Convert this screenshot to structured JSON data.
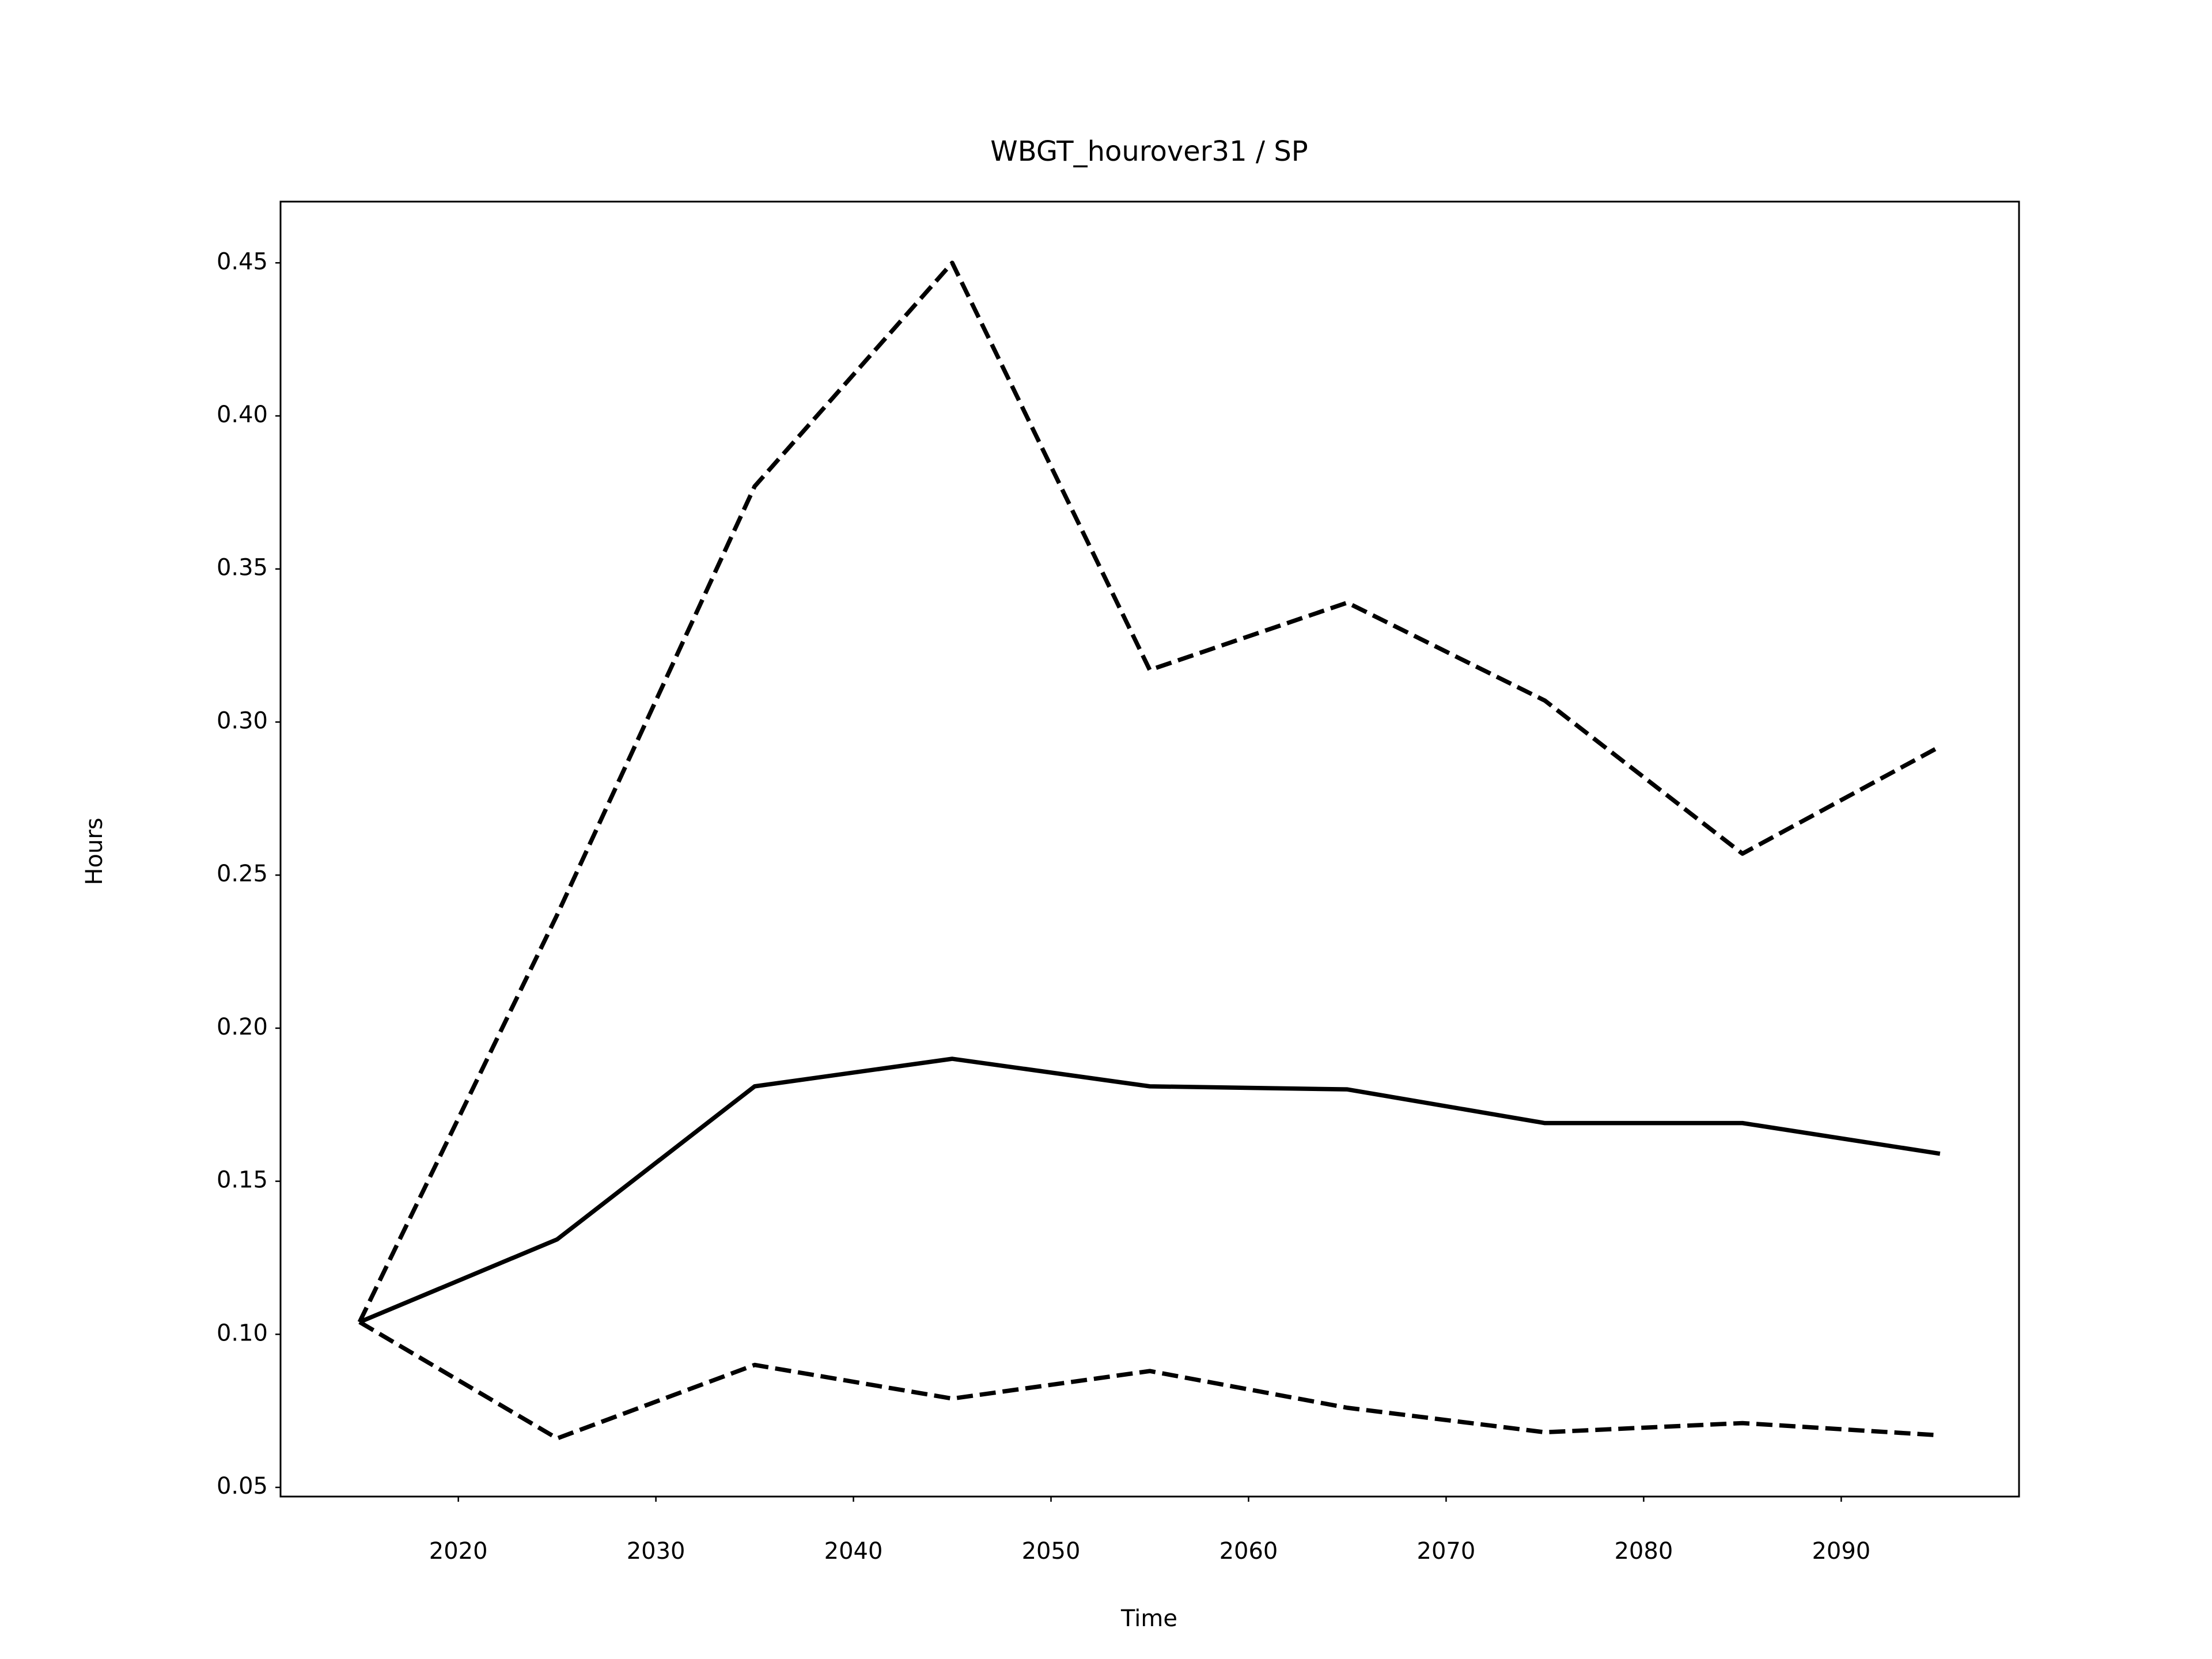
{
  "chart_data": {
    "type": "line",
    "title": "WBGT_hourover31 / SP",
    "x_label": "Time",
    "y_label": "Hours",
    "x": [
      2015,
      2025,
      2035,
      2045,
      2055,
      2065,
      2075,
      2085,
      2095
    ],
    "series": [
      {
        "color": "#000000",
        "style": "solid",
        "values": [
          0.104,
          0.131,
          0.181,
          0.19,
          0.181,
          0.18,
          0.169,
          0.169,
          0.159
        ]
      },
      {
        "color": "#000000",
        "style": "dashed",
        "values": [
          0.104,
          0.237,
          0.377,
          0.45,
          0.317,
          0.339,
          0.307,
          0.257,
          0.292
        ]
      },
      {
        "color": "#000000",
        "style": "dashed",
        "values": [
          0.104,
          0.066,
          0.09,
          0.079,
          0.088,
          0.076,
          0.068,
          0.071,
          0.067
        ]
      }
    ],
    "xlim": [
      2011,
      2099
    ],
    "xticks": [
      2020,
      2030,
      2040,
      2050,
      2060,
      2070,
      2080,
      2090
    ],
    "ylim": [
      0.047,
      0.47
    ],
    "yticks": [
      {
        "value": 0.05,
        "label": "0.05"
      },
      {
        "value": 0.1,
        "label": "0.10"
      },
      {
        "value": 0.15,
        "label": "0.15"
      },
      {
        "value": 0.2,
        "label": "0.20"
      },
      {
        "value": 0.25,
        "label": "0.25"
      },
      {
        "value": 0.3,
        "label": "0.30"
      },
      {
        "value": 0.35,
        "label": "0.35"
      },
      {
        "value": 0.4,
        "label": "0.40"
      },
      {
        "value": 0.45,
        "label": "0.45"
      }
    ],
    "grid": false
  }
}
